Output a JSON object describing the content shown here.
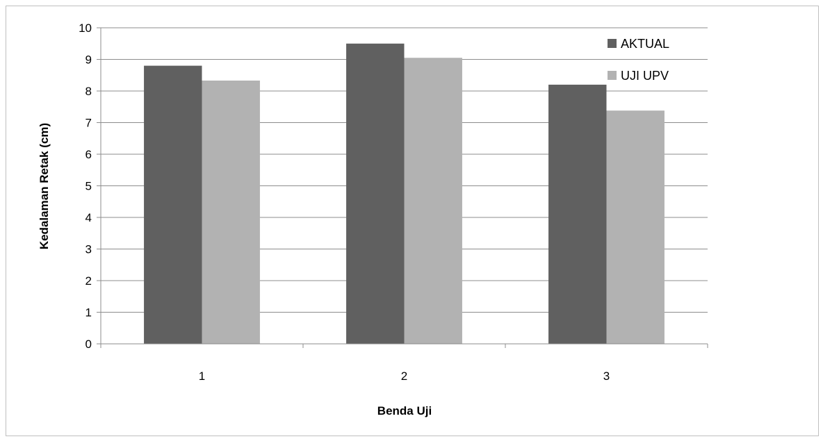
{
  "chart_data": {
    "type": "bar",
    "title": "",
    "xlabel": "Benda Uji",
    "ylabel": "Kedalaman Retak (cm)",
    "categories": [
      "1",
      "2",
      "3"
    ],
    "series": [
      {
        "name": "AKTUAL",
        "values": [
          8.8,
          9.5,
          8.2
        ],
        "color": "#606060"
      },
      {
        "name": "UJI UPV",
        "values": [
          8.33,
          9.05,
          7.38
        ],
        "color": "#b2b2b2"
      }
    ],
    "ylim": [
      0,
      10
    ],
    "yticks": [
      "0",
      "1",
      "2",
      "3",
      "4",
      "5",
      "6",
      "7",
      "8",
      "9",
      "10"
    ],
    "grid": true,
    "legend_position": "top-right"
  }
}
